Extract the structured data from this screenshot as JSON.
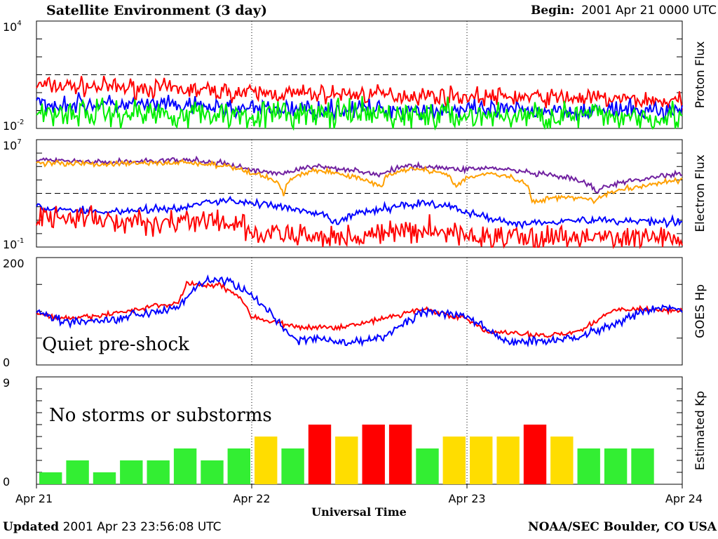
{
  "header": {
    "title": "Satellite Environment (3 day)",
    "begin_label": "Begin:",
    "begin_value": "2001 Apr 21 0000 UTC"
  },
  "footer": {
    "updated_label": "Updated",
    "updated_value": "2001 Apr 23 23:56:08 UTC",
    "source": "NOAA/SEC Boulder, CO USA"
  },
  "x_axis": {
    "label": "Universal Time",
    "ticks": [
      "Apr 21",
      "Apr 22",
      "Apr 23",
      "Apr 24"
    ],
    "range_days": [
      0,
      3
    ]
  },
  "chart_data": [
    {
      "type": "line",
      "ylabel": "Proton Flux",
      "scale": "log",
      "ylim": [
        0.01,
        10000
      ],
      "tick_labels": [
        {
          "base": "10",
          "exp": "4",
          "value": 10000
        },
        {
          "base": "10",
          "exp": "-2",
          "value": 0.01
        }
      ],
      "threshold": 10,
      "series": [
        {
          "color": "#ff0000",
          "x": [
            0,
            0.5,
            1,
            1.5,
            2,
            2.5,
            3
          ],
          "values": [
            2.5,
            1.8,
            0.9,
            0.8,
            0.6,
            0.5,
            0.3
          ],
          "noise": 0.25
        },
        {
          "color": "#0000ff",
          "x": [
            0,
            0.5,
            1,
            1.5,
            2,
            2.5,
            3
          ],
          "values": [
            0.25,
            0.2,
            0.12,
            0.12,
            0.1,
            0.1,
            0.1
          ],
          "noise": 0.25
        },
        {
          "color": "#00ee00",
          "x": [
            0,
            0.5,
            1,
            1.5,
            2,
            2.5,
            3
          ],
          "values": [
            0.08,
            0.07,
            0.06,
            0.06,
            0.05,
            0.05,
            0.05
          ],
          "noise": 0.4
        }
      ]
    },
    {
      "type": "line",
      "ylabel": "Electron Flux",
      "scale": "log",
      "ylim": [
        0.1,
        10000000
      ],
      "tick_labels": [
        {
          "base": "10",
          "exp": "7",
          "value": 10000000
        },
        {
          "base": "10",
          "exp": "-1",
          "value": 0.1
        }
      ],
      "threshold": 1000,
      "series": [
        {
          "color": "#7020a0",
          "x": [
            0,
            0.3,
            0.7,
            1.0,
            1.15,
            1.3,
            1.45,
            1.6,
            1.75,
            1.95,
            2.1,
            2.3,
            2.45,
            2.6,
            2.8,
            3.0
          ],
          "values": [
            300000,
            200000,
            300000,
            50000,
            30000,
            100000,
            60000,
            20000,
            120000,
            60000,
            80000,
            30000,
            15000,
            1000,
            10000,
            30000
          ],
          "noise": 0.1
        },
        {
          "color": "#ffa000",
          "x": [
            0,
            0.3,
            0.7,
            1.0,
            1.15,
            1.3,
            1.45,
            1.6,
            1.75,
            1.95,
            2.1,
            2.3,
            2.45,
            2.6,
            2.8,
            3.0
          ],
          "values": [
            200000,
            150000,
            200000,
            30000,
            200,
            50000,
            20000,
            2000,
            80000,
            3000,
            30000,
            200,
            600,
            300,
            3000,
            10000
          ],
          "noise": 0.1
        },
        {
          "color": "#0000ff",
          "x": [
            0,
            0.3,
            0.7,
            0.85,
            1.0,
            1.2,
            1.4,
            1.6,
            1.8,
            2.0,
            2.2,
            2.5,
            3.0
          ],
          "values": [
            80,
            40,
            80,
            300,
            200,
            50,
            5,
            60,
            200,
            30,
            5,
            10,
            8
          ],
          "noise": 0.15
        },
        {
          "color": "#ff0000",
          "x": [
            0,
            0.5,
            0.7,
            0.9,
            1.0,
            1.3,
            1.6,
            1.8,
            2.0,
            2.4,
            3.0
          ],
          "values": [
            20,
            5,
            10,
            5,
            1,
            0.5,
            0.8,
            2,
            0.6,
            0.5,
            0.4
          ],
          "noise": 0.45
        }
      ]
    },
    {
      "type": "line",
      "ylabel": "GOES Hp",
      "scale": "linear",
      "ylim": [
        0,
        200
      ],
      "tick_labels": [
        {
          "base": "200",
          "exp": "",
          "value": 200
        },
        {
          "base": "0",
          "exp": "",
          "value": 0
        }
      ],
      "annotation": "Quiet pre-shock",
      "series": [
        {
          "color": "#ff0000",
          "x": [
            0,
            0.15,
            0.35,
            0.55,
            0.66,
            0.7,
            0.75,
            0.85,
            0.95,
            1.0,
            1.2,
            1.4,
            1.6,
            1.8,
            2.0,
            2.1,
            2.2,
            2.3,
            2.5,
            2.7,
            2.8,
            3.0
          ],
          "values": [
            95,
            85,
            95,
            110,
            115,
            155,
            148,
            150,
            125,
            90,
            70,
            70,
            85,
            105,
            85,
            60,
            60,
            55,
            60,
            105,
            105,
            100
          ],
          "noise": 2.5
        },
        {
          "color": "#0000ff",
          "x": [
            0,
            0.15,
            0.35,
            0.55,
            0.66,
            0.75,
            0.85,
            0.9,
            0.98,
            1.05,
            1.2,
            1.3,
            1.45,
            1.6,
            1.8,
            2.0,
            2.12,
            2.2,
            2.3,
            2.5,
            2.7,
            2.85,
            3.0
          ],
          "values": [
            100,
            80,
            85,
            100,
            110,
            150,
            160,
            155,
            135,
            110,
            45,
            50,
            40,
            50,
            100,
            90,
            60,
            40,
            45,
            50,
            80,
            105,
            105
          ],
          "noise": 4
        }
      ]
    },
    {
      "type": "bar",
      "ylabel": "Estimated Kp",
      "ylim": [
        0,
        9
      ],
      "tick_labels": [
        {
          "base": "9",
          "exp": "",
          "value": 9
        },
        {
          "base": "0",
          "exp": "",
          "value": 0
        }
      ],
      "annotation": "No storms or substorms",
      "values": [
        1,
        2,
        1,
        2,
        2,
        3,
        2,
        3,
        4,
        3,
        5,
        4,
        5,
        5,
        3,
        4,
        4,
        4,
        5,
        4,
        3,
        3,
        3,
        0
      ],
      "color_key": {
        "quiet": "#33ee33",
        "active": "#ffdd00",
        "storm": "#ff0000"
      }
    }
  ]
}
